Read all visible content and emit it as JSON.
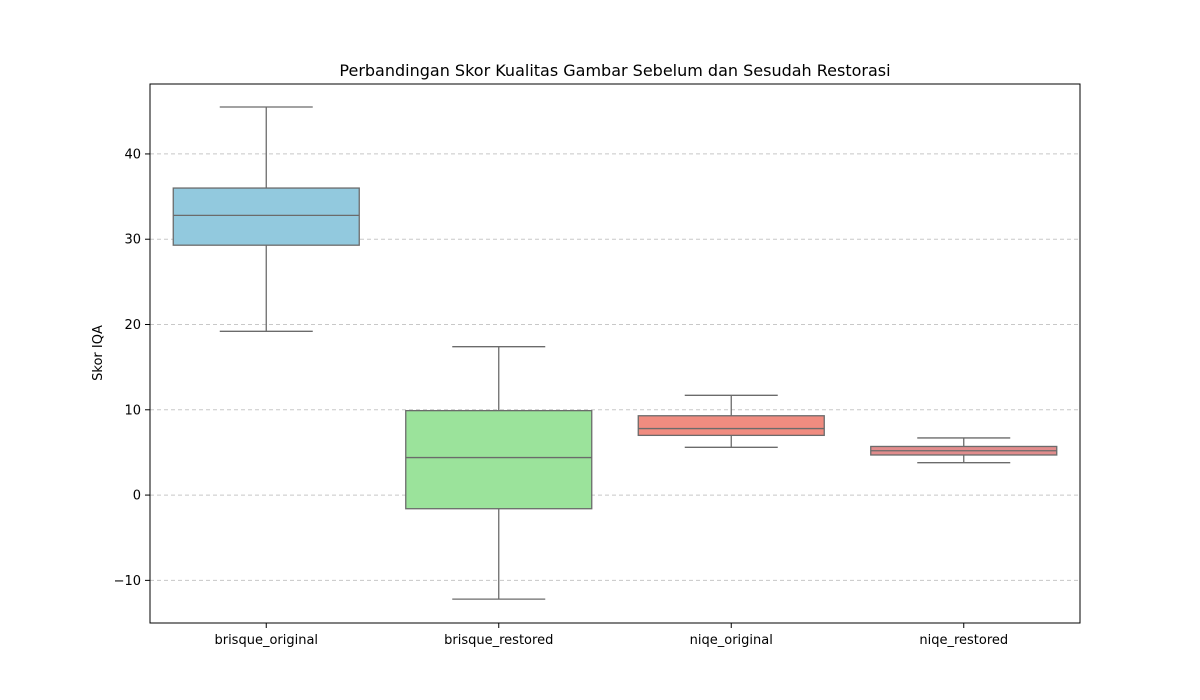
{
  "chart_data": {
    "type": "box",
    "title": "Perbandingan Skor Kualitas Gambar Sebelum dan Sesudah Restorasi",
    "xlabel": "",
    "ylabel": "Skor IQA",
    "ylim": [
      -15,
      48.2
    ],
    "yticks": [
      -10,
      0,
      10,
      20,
      30,
      40
    ],
    "ytick_labels": [
      "−10",
      "0",
      "10",
      "20",
      "30",
      "40"
    ],
    "grid": {
      "y": true,
      "x": false,
      "style": "dashed"
    },
    "categories": [
      "brisque_original",
      "brisque_restored",
      "niqe_original",
      "niqe_restored"
    ],
    "boxes": [
      {
        "category": "brisque_original",
        "whisker_low": 19.2,
        "q1": 29.3,
        "median": 32.8,
        "q3": 36.0,
        "whisker_high": 45.5,
        "color": "#92C9DE"
      },
      {
        "category": "brisque_restored",
        "whisker_low": -12.2,
        "q1": -1.6,
        "median": 4.4,
        "q3": 9.9,
        "whisker_high": 17.4,
        "color": "#9BE39B"
      },
      {
        "category": "niqe_original",
        "whisker_low": 5.6,
        "q1": 7.0,
        "median": 7.8,
        "q3": 9.3,
        "whisker_high": 11.7,
        "color": "#F08C80"
      },
      {
        "category": "niqe_restored",
        "whisker_low": 3.8,
        "q1": 4.7,
        "median": 5.2,
        "q3": 5.7,
        "whisker_high": 6.7,
        "color": "#E18C8C"
      }
    ]
  }
}
